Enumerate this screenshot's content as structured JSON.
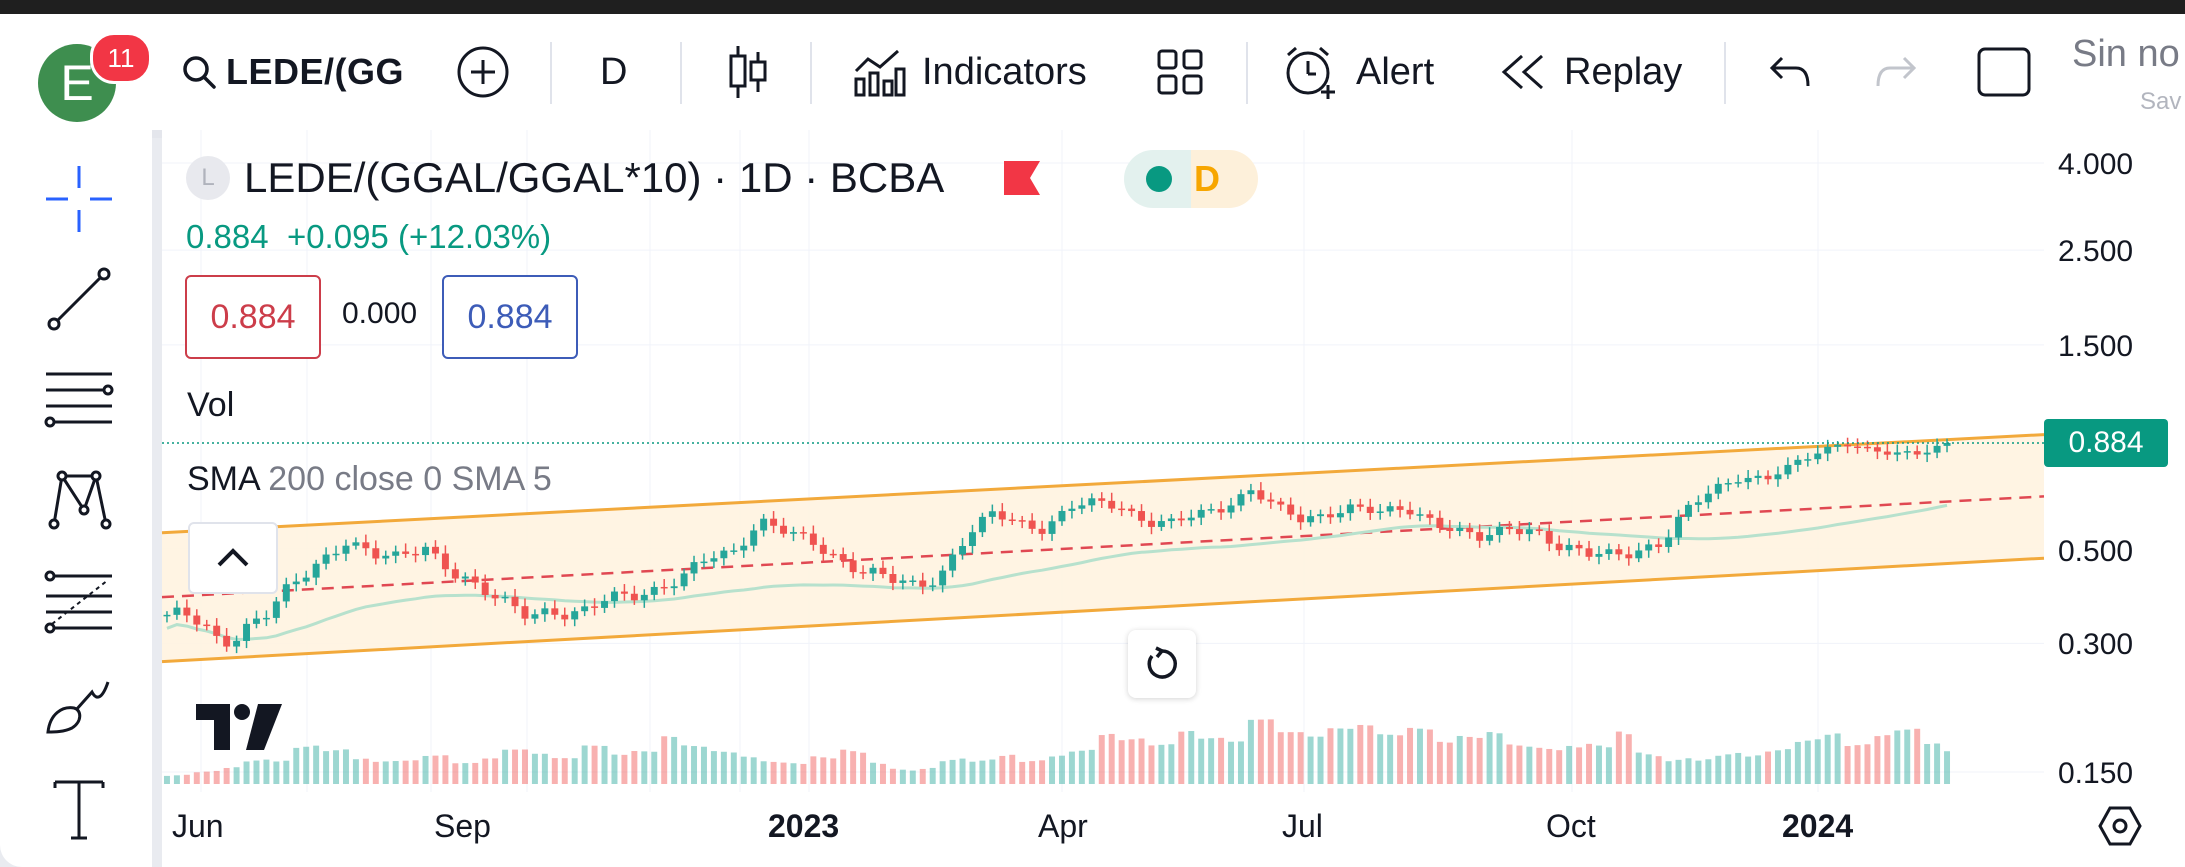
{
  "toolbar": {
    "avatar_letter": "E",
    "notification_count": "11",
    "symbol": "LEDE/(GG",
    "interval": "D",
    "indicators_label": "Indicators",
    "alert_label": "Alert",
    "replay_label": "Replay",
    "layout_name": "Sin no",
    "saved_label": "Sav",
    "icons": [
      "search-icon",
      "add-symbol-icon",
      "candles-icon",
      "indicators-icon",
      "templates-icon",
      "alert-icon",
      "replay-icon",
      "undo-icon",
      "redo-icon",
      "fullscreen-icon"
    ]
  },
  "sidebar": {
    "tools": [
      "crosshair-icon",
      "trend-line-icon",
      "horizontal-lines-icon",
      "pattern-icon",
      "fib-retracement-icon",
      "brush-icon",
      "text-icon"
    ]
  },
  "legend": {
    "symbol_icon_letter": "L",
    "title": "LEDE/(GGAL/GGAL*10) · 1D · BCBA",
    "data_status_letter": "D",
    "last": "0.884",
    "change": "+0.095 (+12.03%)",
    "bid": "0.884",
    "spread": "0.000",
    "ask": "0.884",
    "vol_label": "Vol",
    "sma_name": "SMA",
    "sma_params": "200 close 0 SMA 5"
  },
  "chart_data": {
    "type": "candlestick",
    "symbol": "LEDE/(GGAL/GGAL*10)",
    "interval": "1D",
    "exchange": "BCBA",
    "last_price": "0.884",
    "y_scale": "log",
    "y_ticks": [
      "4.000",
      "2.500",
      "1.500",
      "0.500",
      "0.300",
      "0.150"
    ],
    "x_ticks": [
      {
        "label": "Jun",
        "bold": false
      },
      {
        "label": "Sep",
        "bold": false
      },
      {
        "label": "2023",
        "bold": true
      },
      {
        "label": "Apr",
        "bold": false
      },
      {
        "label": "Jul",
        "bold": false
      },
      {
        "label": "Oct",
        "bold": false
      },
      {
        "label": "2024",
        "bold": true
      }
    ],
    "close_path": [
      0.35,
      0.34,
      0.3,
      0.33,
      0.36,
      0.41,
      0.47,
      0.53,
      0.48,
      0.47,
      0.51,
      0.45,
      0.4,
      0.37,
      0.36,
      0.36,
      0.34,
      0.38,
      0.4,
      0.4,
      0.42,
      0.48,
      0.5,
      0.58,
      0.54,
      0.52,
      0.48,
      0.44,
      0.42,
      0.41,
      0.44,
      0.53,
      0.6,
      0.58,
      0.56,
      0.62,
      0.64,
      0.63,
      0.58,
      0.57,
      0.6,
      0.63,
      0.69,
      0.62,
      0.58,
      0.61,
      0.63,
      0.6,
      0.62,
      0.59,
      0.55,
      0.52,
      0.56,
      0.56,
      0.5,
      0.48,
      0.49,
      0.5,
      0.51,
      0.62,
      0.7,
      0.74,
      0.72,
      0.78,
      0.85,
      0.89,
      0.84,
      0.83,
      0.85,
      0.88
    ],
    "volume_path": [
      0.25,
      0.3,
      0.35,
      0.45,
      0.4,
      0.6,
      0.5,
      0.35,
      0.3,
      0.3,
      0.35,
      0.25,
      0.3,
      0.4,
      0.35,
      0.3,
      0.45,
      0.35,
      0.4,
      0.6,
      0.5,
      0.45,
      0.4,
      0.35,
      0.35,
      0.5,
      0.7,
      0.5,
      0.4,
      0.45,
      0.6,
      0.5,
      0.55,
      0.4,
      0.45,
      0.5,
      0.7,
      0.6,
      0.5,
      0.65,
      0.55,
      0.5,
      0.75,
      0.6,
      0.55,
      0.65,
      0.7,
      0.6,
      0.7,
      0.55,
      0.65,
      0.75,
      0.6,
      0.6,
      0.7,
      0.8,
      1.2,
      0.8,
      0.7,
      0.6,
      0.65,
      0.55,
      0.6,
      0.7,
      0.75,
      0.55,
      0.65,
      0.7,
      0.5,
      0.4
    ],
    "indicators": [
      "Volume",
      "SMA 200 close 0 SMA 5",
      "Parallel channel"
    ]
  },
  "colors": {
    "up": "#26a69a",
    "down": "#ef5350",
    "channel": "#f2a93b",
    "channel_fill": "#fff3e0",
    "midline": "#e04852",
    "sma": "#b7e1cd",
    "last_price": "#089981",
    "avatar": "#3e8e4f",
    "badge": "#f23645"
  }
}
